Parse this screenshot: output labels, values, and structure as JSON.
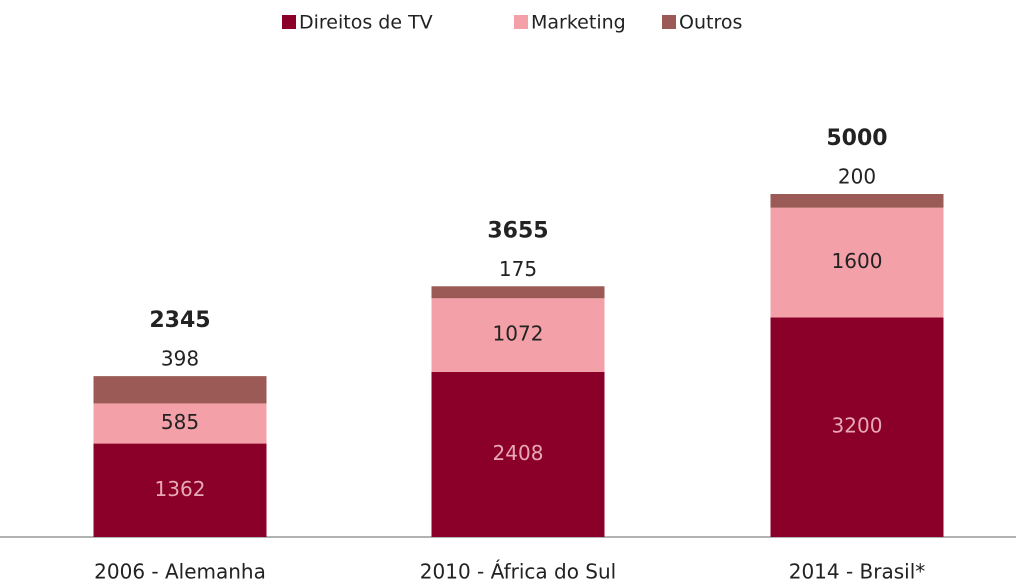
{
  "chart_data": {
    "type": "stacked_bar",
    "categories": [
      "2006 - Alemanha",
      "2010 - África do Sul",
      "2014 - Brasil*"
    ],
    "series": [
      {
        "name": "Direitos de TV",
        "color": "#8b0029",
        "values": [
          1362,
          2408,
          3200
        ]
      },
      {
        "name": "Marketing",
        "color": "#f4a0a8",
        "values": [
          585,
          1072,
          1600
        ]
      },
      {
        "name": "Outros",
        "color": "#9b5a55",
        "values": [
          398,
          175,
          200
        ]
      }
    ],
    "totals": [
      2345,
      3655,
      5000
    ],
    "legend": "top"
  }
}
